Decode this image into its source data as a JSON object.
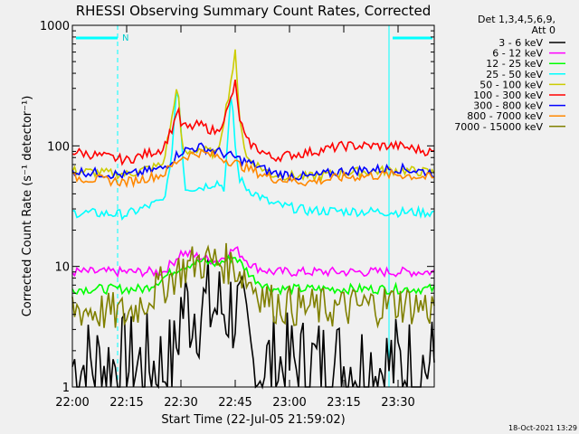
{
  "chart_data": {
    "type": "line",
    "title": "RHESSI Observing Summary Count Rates, Corrected",
    "xlabel": "Start Time (22-Jul-05 21:59:02)",
    "ylabel": "Corrected Count Rate (s⁻¹ detector⁻¹)",
    "x_unit": "minutes after 22:00",
    "xlim": [
      0,
      100
    ],
    "ylim": [
      1,
      1000
    ],
    "yscale": "log",
    "x_ticks": [
      {
        "t": 0,
        "label": "22:00"
      },
      {
        "t": 15,
        "label": "22:15"
      },
      {
        "t": 30,
        "label": "22:30"
      },
      {
        "t": 45,
        "label": "22:45"
      },
      {
        "t": 60,
        "label": "23:00"
      },
      {
        "t": 75,
        "label": "23:15"
      },
      {
        "t": 90,
        "label": "23:30"
      }
    ],
    "y_ticks": [
      {
        "v": 1,
        "label": "1"
      },
      {
        "v": 10,
        "label": "10"
      },
      {
        "v": 100,
        "label": "100"
      },
      {
        "v": 1000,
        "label": "1000"
      }
    ],
    "legend_header": [
      "Det 1,3,4,5,6,9,",
      "Att 0"
    ],
    "legend_position": "right",
    "vlines_solid": [
      0,
      87.5
    ],
    "vlines_dashed": [
      12.5,
      100
    ],
    "n_marker": {
      "label": "N",
      "t": 15
    },
    "night_bars": [
      [
        1,
        12.5
      ],
      [
        88.5,
        99.5
      ]
    ],
    "series": [
      {
        "name": "3 - 6 keV",
        "color": "#000000",
        "x": [
          0,
          28,
          30,
          35,
          40,
          45,
          47,
          50,
          54,
          90,
          100
        ],
        "y": [
          1.5,
          1.5,
          4.5,
          4.5,
          4.5,
          4.5,
          3,
          1.5,
          1.5,
          1.5,
          1.5
        ]
      },
      {
        "name": "6 - 12 keV",
        "color": "#ff00ff",
        "x": [
          0,
          25,
          28,
          30,
          35,
          40,
          45,
          50,
          55,
          100
        ],
        "y": [
          9,
          9,
          11,
          13,
          12,
          11,
          14,
          10,
          9,
          9
        ]
      },
      {
        "name": "12 - 25 keV",
        "color": "#00ff00",
        "x": [
          0,
          20,
          25,
          30,
          35,
          40,
          45,
          50,
          55,
          100
        ],
        "y": [
          6.5,
          6.5,
          8,
          10,
          11,
          10.5,
          12,
          8,
          6.5,
          6.5
        ]
      },
      {
        "name": "25 - 50 keV",
        "color": "#00ffff",
        "x": [
          0,
          15,
          25,
          27,
          29,
          30,
          31,
          35,
          40,
          42,
          44,
          45,
          46,
          48,
          55,
          65,
          100
        ],
        "y": [
          28,
          27,
          35,
          60,
          350,
          150,
          45,
          45,
          50,
          45,
          300,
          100,
          55,
          45,
          33,
          29,
          28
        ]
      },
      {
        "name": "50 - 100 keV",
        "color": "#cccc00",
        "x": [
          0,
          15,
          25,
          28,
          29,
          30,
          31,
          35,
          40,
          43,
          45,
          46,
          48,
          55,
          65,
          75,
          90,
          100
        ],
        "y": [
          62,
          58,
          70,
          200,
          370,
          120,
          85,
          95,
          85,
          250,
          580,
          200,
          80,
          58,
          55,
          60,
          63,
          60
        ]
      },
      {
        "name": "100 - 300 keV",
        "color": "#ff0000",
        "x": [
          0,
          15,
          25,
          28,
          29,
          30,
          32,
          35,
          40,
          43,
          45,
          46,
          48,
          55,
          65,
          75,
          90,
          100
        ],
        "y": [
          90,
          76,
          95,
          150,
          210,
          150,
          140,
          150,
          130,
          200,
          330,
          180,
          110,
          80,
          88,
          100,
          100,
          88
        ]
      },
      {
        "name": "300 - 800 keV",
        "color": "#0000ff",
        "x": [
          0,
          15,
          25,
          30,
          35,
          40,
          45,
          50,
          55,
          65,
          75,
          90,
          100
        ],
        "y": [
          62,
          57,
          65,
          90,
          98,
          90,
          80,
          70,
          60,
          55,
          62,
          65,
          60
        ]
      },
      {
        "name": "800 - 7000 keV",
        "color": "#ff8800",
        "x": [
          0,
          15,
          25,
          30,
          35,
          40,
          45,
          50,
          55,
          65,
          75,
          90,
          100
        ],
        "y": [
          55,
          50,
          58,
          80,
          88,
          82,
          72,
          62,
          54,
          50,
          55,
          58,
          54
        ]
      },
      {
        "name": "7000 - 15000 keV",
        "color": "#808000",
        "x": [
          0,
          15,
          25,
          30,
          35,
          40,
          45,
          50,
          55,
          65,
          75,
          90,
          100
        ],
        "y": [
          4.5,
          4,
          7,
          9.5,
          11,
          11,
          10,
          7,
          5,
          4.5,
          4.5,
          5,
          4.5
        ]
      }
    ],
    "footer_date": "18-Oct-2021 13:29"
  }
}
